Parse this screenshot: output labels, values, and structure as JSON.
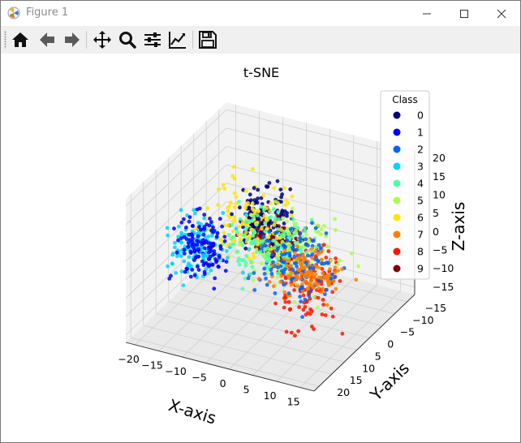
{
  "window": {
    "title": "Figure 1"
  },
  "toolbar": {
    "buttons": [
      {
        "name": "home",
        "icon": "home-icon"
      },
      {
        "name": "back",
        "icon": "arrow-left-icon"
      },
      {
        "name": "forward",
        "icon": "arrow-right-icon"
      },
      {
        "name": "pan",
        "icon": "move-icon"
      },
      {
        "name": "zoom",
        "icon": "magnifier-icon"
      },
      {
        "name": "configure-subplots",
        "icon": "sliders-icon"
      },
      {
        "name": "edit-axes",
        "icon": "line-chart-icon"
      },
      {
        "name": "save",
        "icon": "floppy-disk-icon"
      }
    ]
  },
  "chart_data": {
    "type": "scatter",
    "projection": "3d",
    "title": "t-SNE",
    "xlabel": "X-axis",
    "ylabel": "Y-axis",
    "zlabel": "Z-axis",
    "xticks": [
      -20,
      -15,
      -10,
      -5,
      0,
      5,
      10,
      15
    ],
    "yticks": [
      -15,
      -10,
      -5,
      0,
      5,
      10,
      15,
      20
    ],
    "zticks": [
      -15,
      -10,
      -5,
      0,
      5,
      10,
      15,
      20
    ],
    "xlim": [
      -22,
      18
    ],
    "ylim": [
      -18,
      22
    ],
    "zlim": [
      -17,
      22
    ],
    "grid": true,
    "legend": {
      "title": "Class",
      "placement": "upper-right",
      "entries": [
        "0",
        "1",
        "2",
        "3",
        "4",
        "5",
        "6",
        "7",
        "8",
        "9"
      ]
    },
    "colors": [
      "#00007f",
      "#0000ff",
      "#0062ff",
      "#00d4ff",
      "#4dffaa",
      "#aaff4d",
      "#ffe500",
      "#ff7f00",
      "#ff1600",
      "#7f0000"
    ],
    "series": [
      {
        "name": "0",
        "cluster_center": [
          -2,
          5,
          13
        ],
        "spread": [
          2.5,
          3.0,
          3.0
        ]
      },
      {
        "name": "1",
        "cluster_center": [
          -17,
          1,
          -3
        ],
        "spread": [
          2.5,
          2.5,
          4.0
        ]
      },
      {
        "name": "2",
        "cluster_center": [
          -2,
          -7,
          -7
        ],
        "spread": [
          4.0,
          3.5,
          4.5
        ]
      },
      {
        "name": "3",
        "cluster_center": [
          -14,
          8,
          3
        ],
        "spread": [
          3.0,
          3.0,
          3.5
        ]
      },
      {
        "name": "4",
        "cluster_center": [
          -5,
          -4,
          -2
        ],
        "spread": [
          4.5,
          4.0,
          4.0
        ]
      },
      {
        "name": "5",
        "cluster_center": [
          3,
          1,
          3
        ],
        "spread": [
          4.5,
          4.0,
          4.5
        ]
      },
      {
        "name": "6",
        "cluster_center": [
          -6,
          3,
          8
        ],
        "spread": [
          4.5,
          4.0,
          5.0
        ]
      },
      {
        "name": "7",
        "cluster_center": [
          1,
          -8,
          -10
        ],
        "spread": [
          3.0,
          2.5,
          2.5
        ]
      },
      {
        "name": "8",
        "cluster_center": [
          11,
          11,
          3
        ],
        "spread": [
          2.5,
          3.0,
          5.5
        ]
      },
      {
        "name": "9",
        "cluster_center": [
          6,
          14,
          14
        ],
        "spread": [
          3.0,
          2.5,
          2.5
        ]
      }
    ]
  }
}
